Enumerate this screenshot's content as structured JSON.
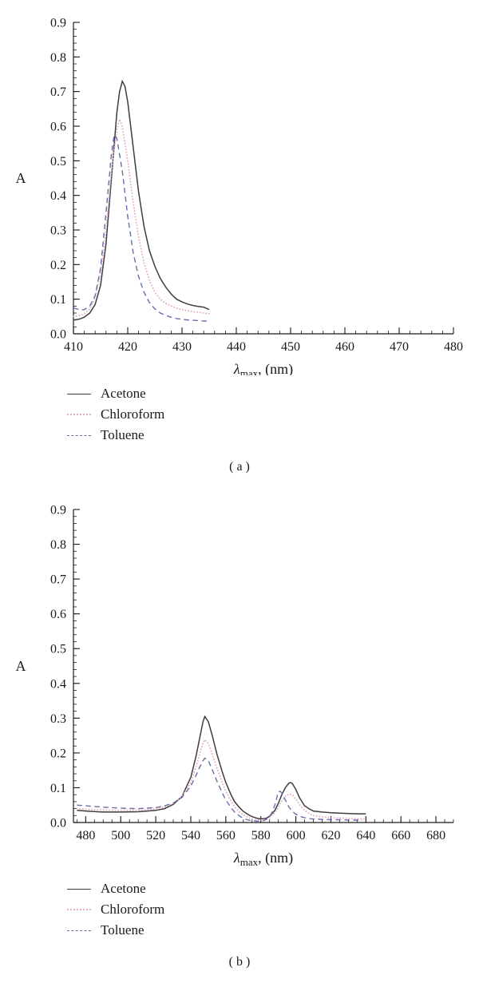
{
  "page": {
    "background": "#ffffff"
  },
  "chart_data": [
    {
      "id": "a",
      "type": "line",
      "caption": "( a )",
      "ylabel": "A",
      "xlabel_lambda": "λ",
      "xlabel_sub": "max",
      "xlabel_rest": ", (nm)",
      "xlim": [
        410,
        480
      ],
      "ylim": [
        0,
        0.9
      ],
      "xticks": [
        410,
        420,
        430,
        440,
        450,
        460,
        470,
        480
      ],
      "yticks": [
        0,
        0.1,
        0.2,
        0.3,
        0.4,
        0.5,
        0.6,
        0.7,
        0.8,
        0.9
      ],
      "ytick_labels": [
        "0.0",
        "0.1",
        "0.2",
        "0.3",
        "0.4",
        "0.5",
        "0.6",
        "0.7",
        "0.8",
        "0.9"
      ],
      "x_minor_step": 2,
      "y_minor_step": 0.02,
      "grid": false,
      "legend_position": "below-left",
      "series": [
        {
          "name": "Acetone",
          "color": "#3d3d3d",
          "dash": "solid",
          "peak_nm": 419,
          "peak_A": 0.73,
          "points": [
            [
              410,
              0.04
            ],
            [
              411,
              0.042
            ],
            [
              412,
              0.048
            ],
            [
              413,
              0.06
            ],
            [
              414,
              0.085
            ],
            [
              415,
              0.14
            ],
            [
              416,
              0.26
            ],
            [
              417,
              0.45
            ],
            [
              418,
              0.64
            ],
            [
              418.5,
              0.7
            ],
            [
              419,
              0.73
            ],
            [
              419.5,
              0.715
            ],
            [
              420,
              0.67
            ],
            [
              421,
              0.54
            ],
            [
              422,
              0.41
            ],
            [
              423,
              0.31
            ],
            [
              424,
              0.24
            ],
            [
              425,
              0.195
            ],
            [
              426,
              0.16
            ],
            [
              427,
              0.135
            ],
            [
              428,
              0.115
            ],
            [
              429,
              0.1
            ],
            [
              430,
              0.092
            ],
            [
              431,
              0.086
            ],
            [
              432,
              0.082
            ],
            [
              433,
              0.079
            ],
            [
              434,
              0.077
            ],
            [
              435,
              0.07
            ]
          ]
        },
        {
          "name": "Chloroform",
          "color": "#e3aec1",
          "dash": "dotted",
          "peak_nm": 418.5,
          "peak_A": 0.62,
          "points": [
            [
              410,
              0.05
            ],
            [
              411,
              0.052
            ],
            [
              412,
              0.058
            ],
            [
              413,
              0.072
            ],
            [
              414,
              0.105
            ],
            [
              415,
              0.175
            ],
            [
              416,
              0.3
            ],
            [
              417,
              0.47
            ],
            [
              418,
              0.59
            ],
            [
              418.5,
              0.62
            ],
            [
              419,
              0.6
            ],
            [
              420,
              0.5
            ],
            [
              421,
              0.38
            ],
            [
              422,
              0.28
            ],
            [
              423,
              0.205
            ],
            [
              424,
              0.155
            ],
            [
              425,
              0.12
            ],
            [
              426,
              0.1
            ],
            [
              427,
              0.088
            ],
            [
              428,
              0.08
            ],
            [
              429,
              0.074
            ],
            [
              430,
              0.07
            ],
            [
              431,
              0.067
            ],
            [
              432,
              0.064
            ],
            [
              433,
              0.062
            ],
            [
              434,
              0.06
            ],
            [
              435,
              0.058
            ]
          ]
        },
        {
          "name": "Toluene",
          "color": "#6b6bad",
          "dash": "dashed",
          "peak_nm": 417.5,
          "peak_A": 0.575,
          "points": [
            [
              410,
              0.075
            ],
            [
              411,
              0.07
            ],
            [
              412,
              0.07
            ],
            [
              413,
              0.08
            ],
            [
              414,
              0.11
            ],
            [
              415,
              0.19
            ],
            [
              416,
              0.35
            ],
            [
              417,
              0.52
            ],
            [
              417.5,
              0.575
            ],
            [
              418,
              0.565
            ],
            [
              419,
              0.47
            ],
            [
              420,
              0.34
            ],
            [
              421,
              0.235
            ],
            [
              422,
              0.165
            ],
            [
              423,
              0.12
            ],
            [
              424,
              0.09
            ],
            [
              425,
              0.072
            ],
            [
              426,
              0.06
            ],
            [
              427,
              0.053
            ],
            [
              428,
              0.048
            ],
            [
              429,
              0.044
            ],
            [
              430,
              0.042
            ],
            [
              431,
              0.04
            ],
            [
              432,
              0.039
            ],
            [
              433,
              0.038
            ],
            [
              434,
              0.037
            ],
            [
              435,
              0.036
            ]
          ]
        }
      ]
    },
    {
      "id": "b",
      "type": "line",
      "caption": "( b )",
      "ylabel": "A",
      "xlabel_lambda": "λ",
      "xlabel_sub": "max",
      "xlabel_rest": ", (nm)",
      "xlim": [
        473,
        690
      ],
      "ylim": [
        0,
        0.9
      ],
      "xticks": [
        480,
        500,
        520,
        540,
        560,
        580,
        600,
        620,
        640,
        660,
        680
      ],
      "yticks": [
        0,
        0.1,
        0.2,
        0.3,
        0.4,
        0.5,
        0.6,
        0.7,
        0.8,
        0.9
      ],
      "ytick_labels": [
        "0.0",
        "0.1",
        "0.2",
        "0.3",
        "0.4",
        "0.5",
        "0.6",
        "0.7",
        "0.8",
        "0.9"
      ],
      "x_minor_step": 5,
      "y_minor_step": 0.02,
      "grid": false,
      "legend_position": "below-left",
      "series": [
        {
          "name": "Acetone",
          "color": "#3d3d3d",
          "dash": "solid",
          "peak_nm": 548,
          "peak_A": 0.305,
          "points": [
            [
              475,
              0.035
            ],
            [
              480,
              0.033
            ],
            [
              490,
              0.03
            ],
            [
              500,
              0.03
            ],
            [
              510,
              0.031
            ],
            [
              520,
              0.035
            ],
            [
              525,
              0.04
            ],
            [
              530,
              0.052
            ],
            [
              535,
              0.075
            ],
            [
              540,
              0.13
            ],
            [
              543,
              0.19
            ],
            [
              545,
              0.24
            ],
            [
              547,
              0.29
            ],
            [
              548,
              0.305
            ],
            [
              550,
              0.29
            ],
            [
              552,
              0.255
            ],
            [
              555,
              0.195
            ],
            [
              558,
              0.145
            ],
            [
              560,
              0.115
            ],
            [
              563,
              0.08
            ],
            [
              565,
              0.06
            ],
            [
              568,
              0.042
            ],
            [
              570,
              0.032
            ],
            [
              573,
              0.022
            ],
            [
              575,
              0.017
            ],
            [
              578,
              0.012
            ],
            [
              580,
              0.01
            ],
            [
              583,
              0.012
            ],
            [
              585,
              0.018
            ],
            [
              588,
              0.035
            ],
            [
              590,
              0.055
            ],
            [
              592,
              0.08
            ],
            [
              594,
              0.1
            ],
            [
              596,
              0.113
            ],
            [
              597,
              0.115
            ],
            [
              598,
              0.112
            ],
            [
              600,
              0.095
            ],
            [
              602,
              0.072
            ],
            [
              605,
              0.048
            ],
            [
              608,
              0.038
            ],
            [
              610,
              0.033
            ],
            [
              615,
              0.03
            ],
            [
              620,
              0.028
            ],
            [
              625,
              0.027
            ],
            [
              630,
              0.026
            ],
            [
              635,
              0.025
            ],
            [
              640,
              0.025
            ]
          ]
        },
        {
          "name": "Chloroform",
          "color": "#e3aec1",
          "dash": "dotted",
          "peak_nm": 548,
          "peak_A": 0.238,
          "points": [
            [
              475,
              0.04
            ],
            [
              480,
              0.038
            ],
            [
              490,
              0.036
            ],
            [
              500,
              0.035
            ],
            [
              510,
              0.036
            ],
            [
              520,
              0.04
            ],
            [
              525,
              0.045
            ],
            [
              530,
              0.055
            ],
            [
              535,
              0.075
            ],
            [
              540,
              0.115
            ],
            [
              543,
              0.16
            ],
            [
              545,
              0.195
            ],
            [
              547,
              0.228
            ],
            [
              548,
              0.238
            ],
            [
              550,
              0.228
            ],
            [
              552,
              0.2
            ],
            [
              555,
              0.155
            ],
            [
              558,
              0.115
            ],
            [
              560,
              0.09
            ],
            [
              563,
              0.062
            ],
            [
              565,
              0.045
            ],
            [
              568,
              0.03
            ],
            [
              570,
              0.022
            ],
            [
              573,
              0.014
            ],
            [
              575,
              0.01
            ],
            [
              578,
              0.008
            ],
            [
              580,
              0.007
            ],
            [
              583,
              0.009
            ],
            [
              585,
              0.014
            ],
            [
              588,
              0.028
            ],
            [
              590,
              0.045
            ],
            [
              592,
              0.062
            ],
            [
              594,
              0.075
            ],
            [
              596,
              0.082
            ],
            [
              598,
              0.08
            ],
            [
              600,
              0.068
            ],
            [
              602,
              0.052
            ],
            [
              605,
              0.035
            ],
            [
              608,
              0.025
            ],
            [
              610,
              0.02
            ],
            [
              615,
              0.016
            ],
            [
              620,
              0.014
            ],
            [
              625,
              0.013
            ],
            [
              630,
              0.012
            ],
            [
              635,
              0.011
            ],
            [
              640,
              0.01
            ]
          ]
        },
        {
          "name": "Toluene",
          "color": "#6b6bad",
          "dash": "dashed",
          "peak_nm": 548,
          "peak_A": 0.185,
          "points": [
            [
              475,
              0.05
            ],
            [
              480,
              0.048
            ],
            [
              490,
              0.044
            ],
            [
              500,
              0.041
            ],
            [
              510,
              0.04
            ],
            [
              520,
              0.043
            ],
            [
              525,
              0.048
            ],
            [
              530,
              0.056
            ],
            [
              535,
              0.072
            ],
            [
              540,
              0.105
            ],
            [
              543,
              0.135
            ],
            [
              545,
              0.158
            ],
            [
              547,
              0.178
            ],
            [
              548,
              0.185
            ],
            [
              550,
              0.178
            ],
            [
              552,
              0.155
            ],
            [
              555,
              0.118
            ],
            [
              558,
              0.085
            ],
            [
              560,
              0.065
            ],
            [
              563,
              0.043
            ],
            [
              565,
              0.03
            ],
            [
              568,
              0.018
            ],
            [
              570,
              0.012
            ],
            [
              573,
              0.007
            ],
            [
              575,
              0.005
            ],
            [
              578,
              0.004
            ],
            [
              580,
              0.004
            ],
            [
              582,
              0.006
            ],
            [
              584,
              0.012
            ],
            [
              586,
              0.025
            ],
            [
              588,
              0.05
            ],
            [
              590,
              0.088
            ],
            [
              591,
              0.09
            ],
            [
              592,
              0.085
            ],
            [
              594,
              0.065
            ],
            [
              596,
              0.045
            ],
            [
              598,
              0.032
            ],
            [
              600,
              0.024
            ],
            [
              602,
              0.018
            ],
            [
              605,
              0.014
            ],
            [
              608,
              0.011
            ],
            [
              610,
              0.01
            ],
            [
              615,
              0.009
            ],
            [
              620,
              0.008
            ],
            [
              625,
              0.008
            ],
            [
              630,
              0.007
            ],
            [
              635,
              0.007
            ],
            [
              638,
              0.007
            ]
          ]
        }
      ]
    }
  ]
}
